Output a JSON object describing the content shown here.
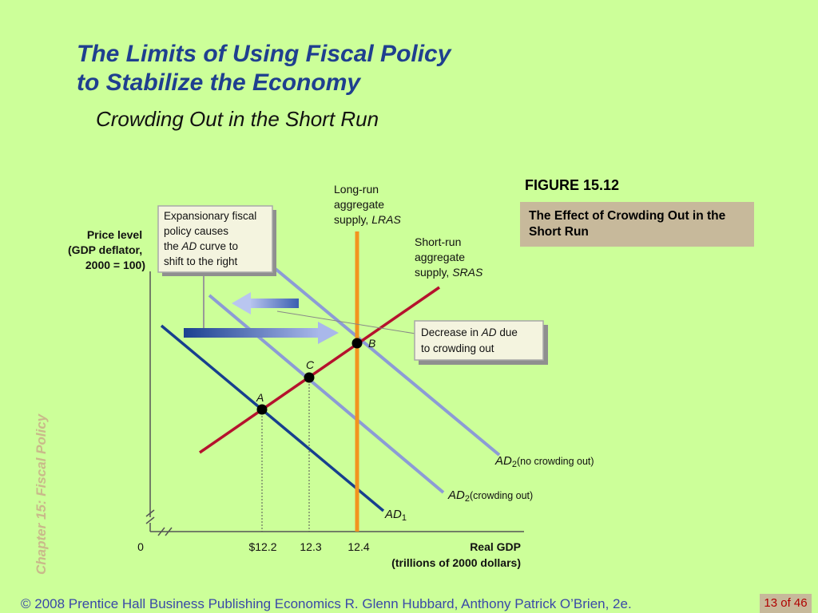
{
  "slide": {
    "title_line1": "The Limits of Using Fiscal Policy",
    "title_line2": "to Stabilize the Economy",
    "subtitle": "Crowding Out in the Short Run",
    "side_label": "Chapter 15:  Fiscal Policy",
    "figure_label": "FIGURE 15.12",
    "figure_caption": "The Effect of Crowding Out in the Short Run",
    "footer": "© 2008 Prentice Hall Business Publishing   Economics  R. Glenn Hubbard, Anthony Patrick O’Brien, 2e.",
    "page": "13 of 46"
  },
  "diagram": {
    "y_axis_label": [
      "Price level",
      "(GDP deflator,",
      "2000 = 100)"
    ],
    "x_axis_label": [
      "Real GDP",
      "(trillions of 2000 dollars)"
    ],
    "origin": "0",
    "x_ticks": [
      "$12.2",
      "12.3",
      "12.4"
    ],
    "lras_label": [
      "Long-run",
      "aggregate"
    ],
    "lras_label_last": "supply, ",
    "lras_abbr": "LRAS",
    "sras_label": [
      "Short-run",
      "aggregate"
    ],
    "sras_label_last": "supply, ",
    "sras_abbr": "SRAS",
    "ad1": "AD",
    "ad1_sub": "1",
    "ad2_nc": "AD",
    "ad2_nc_sub": "2",
    "ad2_nc_note": "(no crowding out)",
    "ad2_c": "AD",
    "ad2_c_sub": "2",
    "ad2_c_note": "(crowding out)",
    "points": [
      "A",
      "B",
      "C"
    ],
    "callout1_line1": "Expansionary fiscal",
    "callout1_line2": "policy causes",
    "callout1_line3_pre": "the ",
    "callout1_line3_em": "AD",
    "callout1_line3_post": " curve to",
    "callout1_line4": "shift to the right",
    "callout2_line1_pre": "Decrease in ",
    "callout2_line1_em": "AD",
    "callout2_line1_post": " due",
    "callout2_line2": "to crowding out",
    "colors": {
      "ad1": "#173f8e",
      "ad2": "#8c9bd6",
      "sras": "#b5122d",
      "lras": "#f2931f",
      "title": "#1f3f8f"
    }
  }
}
